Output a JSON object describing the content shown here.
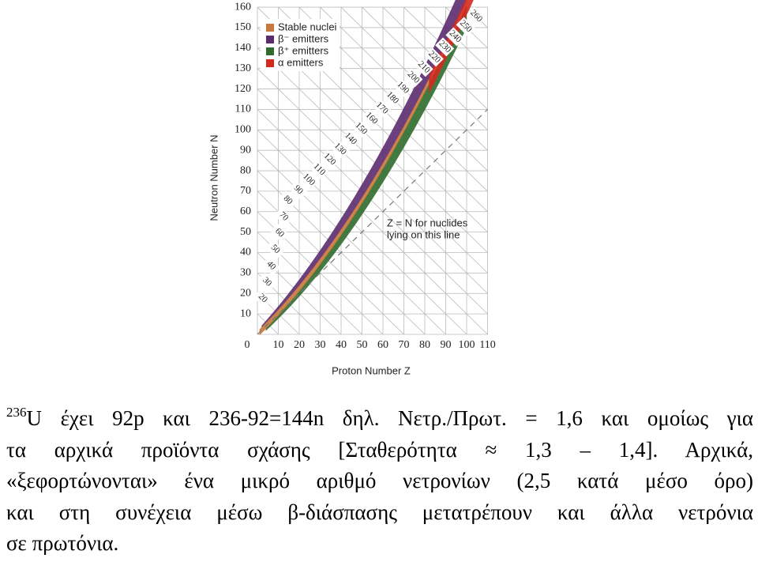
{
  "figure": {
    "x_label": "Proton Number Z",
    "y_label": "Neutron Number N",
    "origin_label": "0",
    "x_ticks": [
      10,
      20,
      30,
      40,
      50,
      60,
      70,
      80,
      90,
      100,
      110
    ],
    "y_ticks": [
      10,
      20,
      30,
      40,
      50,
      60,
      70,
      80,
      90,
      100,
      110,
      120,
      130,
      140,
      150,
      160
    ],
    "mass_labels": [
      20,
      30,
      40,
      50,
      60,
      70,
      80,
      90,
      100,
      110,
      120,
      130,
      140,
      150,
      160,
      170,
      180,
      190,
      200,
      210,
      220,
      230,
      240,
      250,
      260
    ],
    "legend": [
      {
        "label": "Stable nuclei",
        "color": "#c8783a"
      },
      {
        "label": "β⁻ emitters",
        "color": "#5b2b6e"
      },
      {
        "label": "β⁺ emitters",
        "color": "#2f6b2c"
      },
      {
        "label": "α emitters",
        "color": "#d42a1e"
      }
    ],
    "annotation": [
      "Z = N for nuclides",
      "lying on this line"
    ]
  },
  "text": {
    "superscript": "236",
    "lines": [
      "U έχει 92p και 236-92=144n δηλ. Νετρ./Πρωτ. = 1,6 και ομοίως για",
      "τα αρχικά προϊόντα σχάσης [Σταθερότητα ≈ 1,3 – 1,4]. Αρχικά,",
      "«ξεφορτώνονται» ένα μικρό αριθμό νετρονίων (2,5 κατά μέσο όρο)",
      "και στη συνέχεια μέσω β-διάσπασης μετατρέπουν και άλλα νετρόνια",
      "σε πρωτόνια."
    ]
  }
}
